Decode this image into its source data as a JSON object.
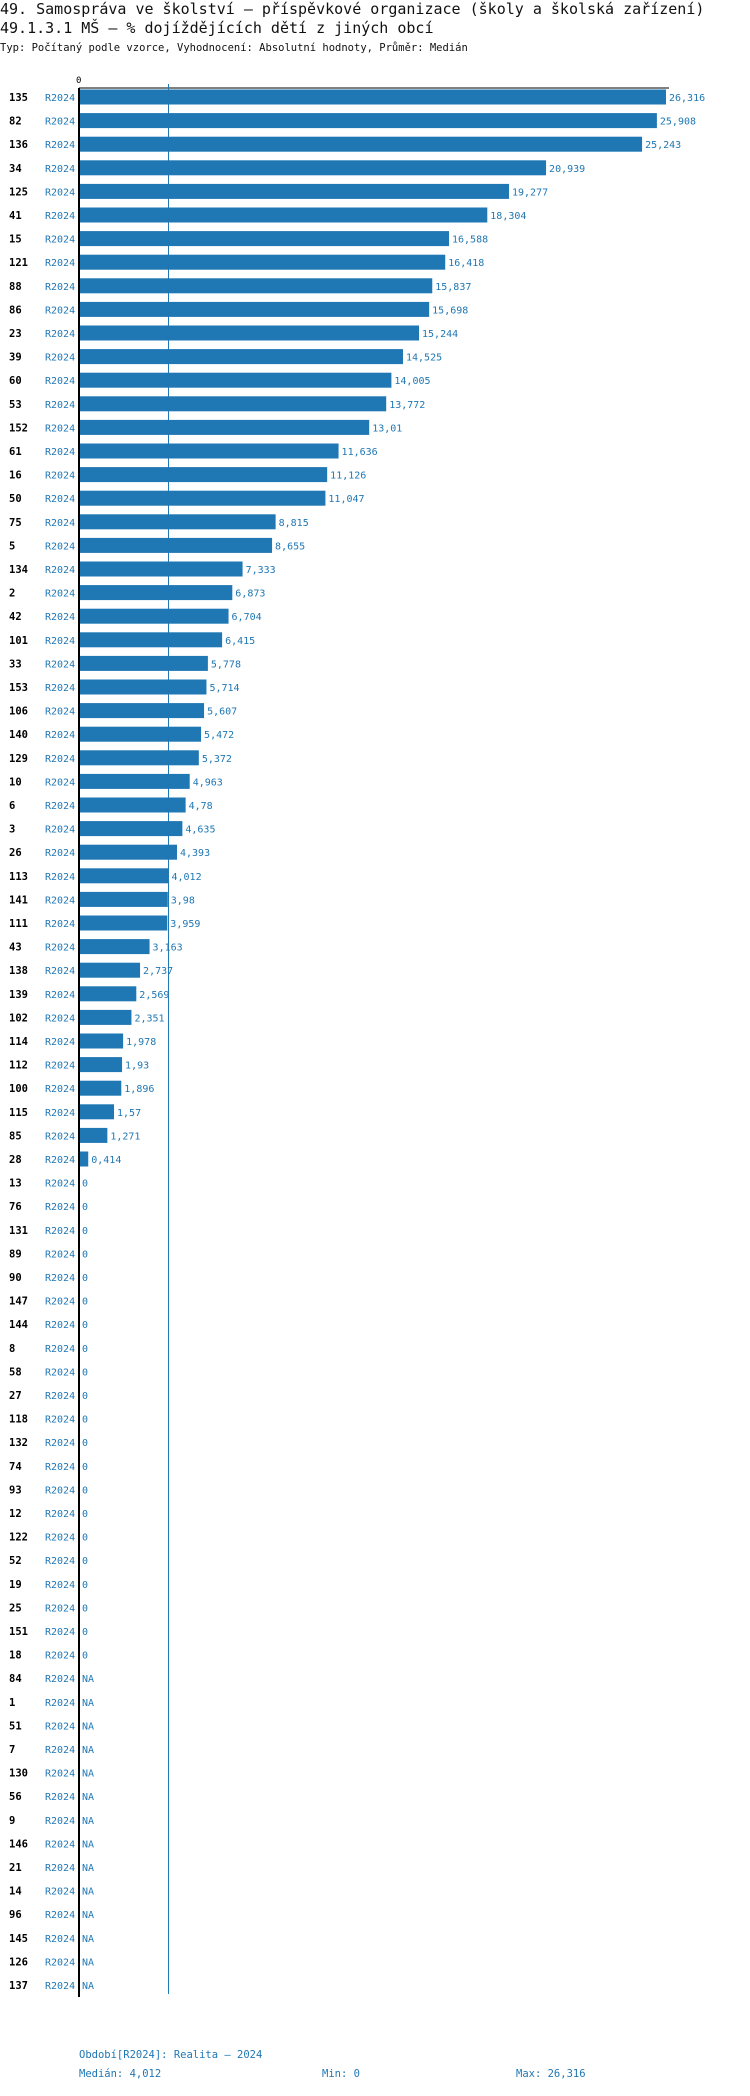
{
  "header": {
    "title": "49. Samospráva ve školství – příspěvkové organizace (školy a školská zařízení)",
    "subtitle": "49.1.3.1 MŠ – % dojíždějících dětí z jiných obcí",
    "meta": "Typ: Počítaný podle vzorce, Vyhodnocení: Absolutní hodnoty, Průměr: Medián"
  },
  "footer": {
    "period": "Období[R2024]: Realita – 2024",
    "median": "Medián: 4,012",
    "min": "Min: 0",
    "max": "Max: 26,316"
  },
  "colors": {
    "bar": "#1f77b4",
    "label": "#1f77b4",
    "axis": "#000000",
    "rowid": "#000000"
  },
  "chart_data": {
    "type": "bar",
    "orientation": "horizontal",
    "xlim": [
      0,
      26.316
    ],
    "axis_zero_label": "0",
    "median": 4.012,
    "period": "R2024",
    "rows": [
      {
        "id": "135",
        "period": "R2024",
        "value": 26.316,
        "label": "26,316"
      },
      {
        "id": "82",
        "period": "R2024",
        "value": 25.908,
        "label": "25,908"
      },
      {
        "id": "136",
        "period": "R2024",
        "value": 25.243,
        "label": "25,243"
      },
      {
        "id": "34",
        "period": "R2024",
        "value": 20.939,
        "label": "20,939"
      },
      {
        "id": "125",
        "period": "R2024",
        "value": 19.277,
        "label": "19,277"
      },
      {
        "id": "41",
        "period": "R2024",
        "value": 18.304,
        "label": "18,304"
      },
      {
        "id": "15",
        "period": "R2024",
        "value": 16.588,
        "label": "16,588"
      },
      {
        "id": "121",
        "period": "R2024",
        "value": 16.418,
        "label": "16,418"
      },
      {
        "id": "88",
        "period": "R2024",
        "value": 15.837,
        "label": "15,837"
      },
      {
        "id": "86",
        "period": "R2024",
        "value": 15.698,
        "label": "15,698"
      },
      {
        "id": "23",
        "period": "R2024",
        "value": 15.244,
        "label": "15,244"
      },
      {
        "id": "39",
        "period": "R2024",
        "value": 14.525,
        "label": "14,525"
      },
      {
        "id": "60",
        "period": "R2024",
        "value": 14.005,
        "label": "14,005"
      },
      {
        "id": "53",
        "period": "R2024",
        "value": 13.772,
        "label": "13,772"
      },
      {
        "id": "152",
        "period": "R2024",
        "value": 13.01,
        "label": "13,01"
      },
      {
        "id": "61",
        "period": "R2024",
        "value": 11.636,
        "label": "11,636"
      },
      {
        "id": "16",
        "period": "R2024",
        "value": 11.126,
        "label": "11,126"
      },
      {
        "id": "50",
        "period": "R2024",
        "value": 11.047,
        "label": "11,047"
      },
      {
        "id": "75",
        "period": "R2024",
        "value": 8.815,
        "label": "8,815"
      },
      {
        "id": "5",
        "period": "R2024",
        "value": 8.655,
        "label": "8,655"
      },
      {
        "id": "134",
        "period": "R2024",
        "value": 7.333,
        "label": "7,333"
      },
      {
        "id": "2",
        "period": "R2024",
        "value": 6.873,
        "label": "6,873"
      },
      {
        "id": "42",
        "period": "R2024",
        "value": 6.704,
        "label": "6,704"
      },
      {
        "id": "101",
        "period": "R2024",
        "value": 6.415,
        "label": "6,415"
      },
      {
        "id": "33",
        "period": "R2024",
        "value": 5.778,
        "label": "5,778"
      },
      {
        "id": "153",
        "period": "R2024",
        "value": 5.714,
        "label": "5,714"
      },
      {
        "id": "106",
        "period": "R2024",
        "value": 5.607,
        "label": "5,607"
      },
      {
        "id": "140",
        "period": "R2024",
        "value": 5.472,
        "label": "5,472"
      },
      {
        "id": "129",
        "period": "R2024",
        "value": 5.372,
        "label": "5,372"
      },
      {
        "id": "10",
        "period": "R2024",
        "value": 4.963,
        "label": "4,963"
      },
      {
        "id": "6",
        "period": "R2024",
        "value": 4.78,
        "label": "4,78"
      },
      {
        "id": "3",
        "period": "R2024",
        "value": 4.635,
        "label": "4,635"
      },
      {
        "id": "26",
        "period": "R2024",
        "value": 4.393,
        "label": "4,393"
      },
      {
        "id": "113",
        "period": "R2024",
        "value": 4.012,
        "label": "4,012"
      },
      {
        "id": "141",
        "period": "R2024",
        "value": 3.98,
        "label": "3,98"
      },
      {
        "id": "111",
        "period": "R2024",
        "value": 3.959,
        "label": "3,959"
      },
      {
        "id": "43",
        "period": "R2024",
        "value": 3.163,
        "label": "3,163"
      },
      {
        "id": "138",
        "period": "R2024",
        "value": 2.737,
        "label": "2,737"
      },
      {
        "id": "139",
        "period": "R2024",
        "value": 2.569,
        "label": "2,569"
      },
      {
        "id": "102",
        "period": "R2024",
        "value": 2.351,
        "label": "2,351"
      },
      {
        "id": "114",
        "period": "R2024",
        "value": 1.978,
        "label": "1,978"
      },
      {
        "id": "112",
        "period": "R2024",
        "value": 1.93,
        "label": "1,93"
      },
      {
        "id": "100",
        "period": "R2024",
        "value": 1.896,
        "label": "1,896"
      },
      {
        "id": "115",
        "period": "R2024",
        "value": 1.57,
        "label": "1,57"
      },
      {
        "id": "85",
        "period": "R2024",
        "value": 1.271,
        "label": "1,271"
      },
      {
        "id": "28",
        "period": "R2024",
        "value": 0.414,
        "label": "0,414"
      },
      {
        "id": "13",
        "period": "R2024",
        "value": 0,
        "label": "0"
      },
      {
        "id": "76",
        "period": "R2024",
        "value": 0,
        "label": "0"
      },
      {
        "id": "131",
        "period": "R2024",
        "value": 0,
        "label": "0"
      },
      {
        "id": "89",
        "period": "R2024",
        "value": 0,
        "label": "0"
      },
      {
        "id": "90",
        "period": "R2024",
        "value": 0,
        "label": "0"
      },
      {
        "id": "147",
        "period": "R2024",
        "value": 0,
        "label": "0"
      },
      {
        "id": "144",
        "period": "R2024",
        "value": 0,
        "label": "0"
      },
      {
        "id": "8",
        "period": "R2024",
        "value": 0,
        "label": "0"
      },
      {
        "id": "58",
        "period": "R2024",
        "value": 0,
        "label": "0"
      },
      {
        "id": "27",
        "period": "R2024",
        "value": 0,
        "label": "0"
      },
      {
        "id": "118",
        "period": "R2024",
        "value": 0,
        "label": "0"
      },
      {
        "id": "132",
        "period": "R2024",
        "value": 0,
        "label": "0"
      },
      {
        "id": "74",
        "period": "R2024",
        "value": 0,
        "label": "0"
      },
      {
        "id": "93",
        "period": "R2024",
        "value": 0,
        "label": "0"
      },
      {
        "id": "12",
        "period": "R2024",
        "value": 0,
        "label": "0"
      },
      {
        "id": "122",
        "period": "R2024",
        "value": 0,
        "label": "0"
      },
      {
        "id": "52",
        "period": "R2024",
        "value": 0,
        "label": "0"
      },
      {
        "id": "19",
        "period": "R2024",
        "value": 0,
        "label": "0"
      },
      {
        "id": "25",
        "period": "R2024",
        "value": 0,
        "label": "0"
      },
      {
        "id": "151",
        "period": "R2024",
        "value": 0,
        "label": "0"
      },
      {
        "id": "18",
        "period": "R2024",
        "value": 0,
        "label": "0"
      },
      {
        "id": "84",
        "period": "R2024",
        "value": null,
        "label": "NA"
      },
      {
        "id": "1",
        "period": "R2024",
        "value": null,
        "label": "NA"
      },
      {
        "id": "51",
        "period": "R2024",
        "value": null,
        "label": "NA"
      },
      {
        "id": "7",
        "period": "R2024",
        "value": null,
        "label": "NA"
      },
      {
        "id": "130",
        "period": "R2024",
        "value": null,
        "label": "NA"
      },
      {
        "id": "56",
        "period": "R2024",
        "value": null,
        "label": "NA"
      },
      {
        "id": "9",
        "period": "R2024",
        "value": null,
        "label": "NA"
      },
      {
        "id": "146",
        "period": "R2024",
        "value": null,
        "label": "NA"
      },
      {
        "id": "21",
        "period": "R2024",
        "value": null,
        "label": "NA"
      },
      {
        "id": "14",
        "period": "R2024",
        "value": null,
        "label": "NA"
      },
      {
        "id": "96",
        "period": "R2024",
        "value": null,
        "label": "NA"
      },
      {
        "id": "145",
        "period": "R2024",
        "value": null,
        "label": "NA"
      },
      {
        "id": "126",
        "period": "R2024",
        "value": null,
        "label": "NA"
      },
      {
        "id": "137",
        "period": "R2024",
        "value": null,
        "label": "NA"
      }
    ]
  }
}
